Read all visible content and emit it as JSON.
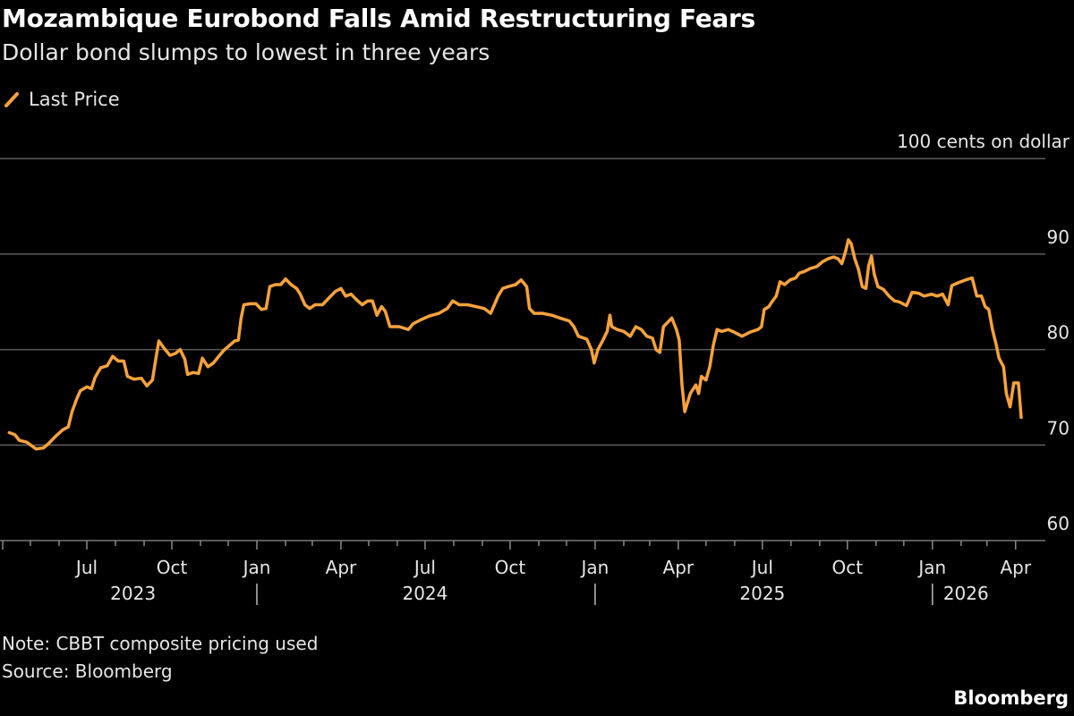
{
  "header": {
    "title": "Mozambique Eurobond Falls Amid Restructuring Fears",
    "subtitle": "Dollar bond slumps to lowest in three years"
  },
  "footer": {
    "note": "Note: CBBT composite pricing used",
    "source": "Source: Bloomberg",
    "brand": "Bloomberg"
  },
  "colors": {
    "line": "#f7a23b",
    "grid": "#5a5a5a",
    "background": "#000000"
  },
  "chart_data": {
    "type": "line",
    "title": "Mozambique Eurobond Falls Amid Restructuring Fears",
    "subtitle": "Dollar bond slumps to lowest in three years",
    "ylabel": "cents on dollar",
    "y_unit_label": "100 cents on dollar",
    "ylim": [
      60,
      100
    ],
    "yticks": [
      60,
      70,
      80,
      90,
      100
    ],
    "ytick_labels": [
      "60",
      "70",
      "80",
      "90",
      "100 cents on dollar"
    ],
    "xlim": [
      "2023-04-01",
      "2026-04-30"
    ],
    "xtick_labels": [
      {
        "date": "2023-07-01",
        "label": "Jul"
      },
      {
        "date": "2023-10-01",
        "label": "Oct"
      },
      {
        "date": "2024-01-01",
        "label": "Jan"
      },
      {
        "date": "2024-04-01",
        "label": "Apr"
      },
      {
        "date": "2024-07-01",
        "label": "Jul"
      },
      {
        "date": "2024-10-01",
        "label": "Oct"
      },
      {
        "date": "2025-01-01",
        "label": "Jan"
      },
      {
        "date": "2025-04-01",
        "label": "Apr"
      },
      {
        "date": "2025-07-01",
        "label": "Jul"
      },
      {
        "date": "2025-10-01",
        "label": "Oct"
      },
      {
        "date": "2026-01-01",
        "label": "Jan"
      },
      {
        "date": "2026-04-01",
        "label": "Apr"
      }
    ],
    "year_labels": [
      "2023",
      "2024",
      "2025",
      "2026"
    ],
    "grid": true,
    "legend_placement": "top-left",
    "series": [
      {
        "name": "Last Price",
        "color": "#f7a23b",
        "points": [
          [
            "2023-04-08",
            71.3
          ],
          [
            "2023-04-14",
            71.1
          ],
          [
            "2023-04-19",
            70.5
          ],
          [
            "2023-04-27",
            70.3
          ],
          [
            "2023-05-07",
            69.6
          ],
          [
            "2023-05-15",
            69.7
          ],
          [
            "2023-05-21",
            70.2
          ],
          [
            "2023-05-28",
            70.9
          ],
          [
            "2023-06-05",
            71.6
          ],
          [
            "2023-06-11",
            71.9
          ],
          [
            "2023-06-15",
            73.5
          ],
          [
            "2023-06-20",
            74.8
          ],
          [
            "2023-06-24",
            75.7
          ],
          [
            "2023-07-01",
            76.1
          ],
          [
            "2023-07-06",
            75.9
          ],
          [
            "2023-07-10",
            77.1
          ],
          [
            "2023-07-16",
            78.1
          ],
          [
            "2023-07-23",
            78.3
          ],
          [
            "2023-07-29",
            79.3
          ],
          [
            "2023-08-04",
            78.8
          ],
          [
            "2023-08-10",
            78.8
          ],
          [
            "2023-08-14",
            77.2
          ],
          [
            "2023-08-21",
            76.9
          ],
          [
            "2023-08-29",
            77.0
          ],
          [
            "2023-09-04",
            76.2
          ],
          [
            "2023-09-10",
            76.8
          ],
          [
            "2023-09-14",
            79.2
          ],
          [
            "2023-09-17",
            80.9
          ],
          [
            "2023-09-23",
            80.1
          ],
          [
            "2023-09-29",
            79.4
          ],
          [
            "2023-10-05",
            79.6
          ],
          [
            "2023-10-10",
            80.0
          ],
          [
            "2023-10-15",
            79.0
          ],
          [
            "2023-10-18",
            77.4
          ],
          [
            "2023-10-24",
            77.6
          ],
          [
            "2023-10-30",
            77.5
          ],
          [
            "2023-11-03",
            79.1
          ],
          [
            "2023-11-09",
            78.2
          ],
          [
            "2023-11-15",
            78.6
          ],
          [
            "2023-11-20",
            79.2
          ],
          [
            "2023-11-26",
            79.9
          ],
          [
            "2023-12-02",
            80.4
          ],
          [
            "2023-12-08",
            80.9
          ],
          [
            "2023-12-12",
            81.0
          ],
          [
            "2023-12-15",
            83.3
          ],
          [
            "2023-12-18",
            84.7
          ],
          [
            "2023-12-25",
            84.8
          ],
          [
            "2023-12-31",
            84.8
          ],
          [
            "2024-01-06",
            84.2
          ],
          [
            "2024-01-11",
            84.3
          ],
          [
            "2024-01-15",
            86.6
          ],
          [
            "2024-01-21",
            86.8
          ],
          [
            "2024-01-27",
            86.8
          ],
          [
            "2024-02-01",
            87.4
          ],
          [
            "2024-02-07",
            86.8
          ],
          [
            "2024-02-13",
            86.4
          ],
          [
            "2024-02-17",
            85.8
          ],
          [
            "2024-02-22",
            84.7
          ],
          [
            "2024-02-27",
            84.3
          ],
          [
            "2024-03-04",
            84.7
          ],
          [
            "2024-03-12",
            84.7
          ],
          [
            "2024-03-19",
            85.4
          ],
          [
            "2024-03-26",
            86.1
          ],
          [
            "2024-04-01",
            86.4
          ],
          [
            "2024-04-06",
            85.6
          ],
          [
            "2024-04-12",
            85.8
          ],
          [
            "2024-04-18",
            85.2
          ],
          [
            "2024-04-24",
            84.7
          ],
          [
            "2024-04-30",
            85.1
          ],
          [
            "2024-05-05",
            85.1
          ],
          [
            "2024-05-10",
            83.6
          ],
          [
            "2024-05-15",
            84.5
          ],
          [
            "2024-05-19",
            84.0
          ],
          [
            "2024-05-24",
            82.4
          ],
          [
            "2024-06-03",
            82.4
          ],
          [
            "2024-06-13",
            82.1
          ],
          [
            "2024-06-18",
            82.7
          ],
          [
            "2024-06-26",
            83.1
          ],
          [
            "2024-07-05",
            83.5
          ],
          [
            "2024-07-16",
            83.8
          ],
          [
            "2024-07-25",
            84.3
          ],
          [
            "2024-07-31",
            85.1
          ],
          [
            "2024-08-07",
            84.7
          ],
          [
            "2024-08-16",
            84.7
          ],
          [
            "2024-08-25",
            84.5
          ],
          [
            "2024-09-03",
            84.3
          ],
          [
            "2024-09-10",
            83.8
          ],
          [
            "2024-09-14",
            84.7
          ],
          [
            "2024-09-18",
            85.6
          ],
          [
            "2024-09-23",
            86.4
          ],
          [
            "2024-09-29",
            86.6
          ],
          [
            "2024-10-07",
            86.8
          ],
          [
            "2024-10-13",
            87.3
          ],
          [
            "2024-10-19",
            86.6
          ],
          [
            "2024-10-22",
            84.3
          ],
          [
            "2024-10-27",
            83.8
          ],
          [
            "2024-11-05",
            83.8
          ],
          [
            "2024-11-15",
            83.6
          ],
          [
            "2024-11-24",
            83.3
          ],
          [
            "2024-12-04",
            83.0
          ],
          [
            "2024-12-09",
            82.4
          ],
          [
            "2024-12-14",
            81.4
          ],
          [
            "2024-12-23",
            81.1
          ],
          [
            "2024-12-28",
            80.0
          ],
          [
            "2024-12-31",
            78.6
          ],
          [
            "2025-01-04",
            80.0
          ],
          [
            "2025-01-09",
            80.9
          ],
          [
            "2025-01-14",
            81.9
          ],
          [
            "2025-01-17",
            83.6
          ],
          [
            "2025-01-19",
            82.4
          ],
          [
            "2025-01-25",
            82.1
          ],
          [
            "2025-02-01",
            81.9
          ],
          [
            "2025-02-08",
            81.4
          ],
          [
            "2025-02-14",
            82.4
          ],
          [
            "2025-02-20",
            82.1
          ],
          [
            "2025-02-26",
            81.4
          ],
          [
            "2025-03-04",
            81.2
          ],
          [
            "2025-03-08",
            80.0
          ],
          [
            "2025-03-12",
            79.7
          ],
          [
            "2025-03-16",
            82.4
          ],
          [
            "2025-03-22",
            83.0
          ],
          [
            "2025-03-25",
            83.3
          ],
          [
            "2025-03-30",
            82.1
          ],
          [
            "2025-04-02",
            81.0
          ],
          [
            "2025-04-05",
            76.3
          ],
          [
            "2025-04-08",
            73.5
          ],
          [
            "2025-04-14",
            75.4
          ],
          [
            "2025-04-20",
            76.3
          ],
          [
            "2025-04-23",
            75.4
          ],
          [
            "2025-04-26",
            77.2
          ],
          [
            "2025-05-01",
            76.8
          ],
          [
            "2025-05-05",
            78.2
          ],
          [
            "2025-05-09",
            80.5
          ],
          [
            "2025-05-13",
            82.1
          ],
          [
            "2025-05-18",
            81.9
          ],
          [
            "2025-05-25",
            82.1
          ],
          [
            "2025-06-01",
            81.8
          ],
          [
            "2025-06-09",
            81.4
          ],
          [
            "2025-06-17",
            81.8
          ],
          [
            "2025-06-26",
            82.1
          ],
          [
            "2025-06-30",
            82.4
          ],
          [
            "2025-07-03",
            84.2
          ],
          [
            "2025-07-08",
            84.5
          ],
          [
            "2025-07-12",
            85.1
          ],
          [
            "2025-07-16",
            85.6
          ],
          [
            "2025-07-20",
            87.1
          ],
          [
            "2025-07-25",
            86.8
          ],
          [
            "2025-07-31",
            87.3
          ],
          [
            "2025-08-06",
            87.5
          ],
          [
            "2025-08-10",
            88.0
          ],
          [
            "2025-08-16",
            88.2
          ],
          [
            "2025-08-22",
            88.5
          ],
          [
            "2025-08-29",
            88.7
          ],
          [
            "2025-09-04",
            89.2
          ],
          [
            "2025-09-10",
            89.5
          ],
          [
            "2025-09-16",
            89.7
          ],
          [
            "2025-09-21",
            89.5
          ],
          [
            "2025-09-25",
            89.0
          ],
          [
            "2025-09-29",
            90.3
          ],
          [
            "2025-10-02",
            91.5
          ],
          [
            "2025-10-05",
            91.1
          ],
          [
            "2025-10-09",
            89.5
          ],
          [
            "2025-10-13",
            88.4
          ],
          [
            "2025-10-17",
            86.6
          ],
          [
            "2025-10-21",
            86.4
          ],
          [
            "2025-10-24",
            88.8
          ],
          [
            "2025-10-27",
            89.8
          ],
          [
            "2025-10-30",
            87.9
          ],
          [
            "2025-11-03",
            86.6
          ],
          [
            "2025-11-09",
            86.3
          ],
          [
            "2025-11-15",
            85.6
          ],
          [
            "2025-11-21",
            85.1
          ],
          [
            "2025-11-26",
            85.0
          ],
          [
            "2025-12-04",
            84.6
          ],
          [
            "2025-12-10",
            86.0
          ],
          [
            "2025-12-17",
            85.9
          ],
          [
            "2025-12-23",
            85.6
          ],
          [
            "2025-12-31",
            85.8
          ],
          [
            "2026-01-06",
            85.6
          ],
          [
            "2026-01-12",
            85.8
          ],
          [
            "2026-01-18",
            84.7
          ],
          [
            "2026-01-22",
            86.7
          ],
          [
            "2026-01-29",
            87.0
          ],
          [
            "2026-02-06",
            87.3
          ],
          [
            "2026-02-13",
            87.5
          ],
          [
            "2026-02-18",
            85.6
          ],
          [
            "2026-02-23",
            85.6
          ],
          [
            "2026-02-27",
            84.5
          ],
          [
            "2026-03-03",
            84.2
          ],
          [
            "2026-03-07",
            82.1
          ],
          [
            "2026-03-11",
            80.5
          ],
          [
            "2026-03-14",
            79.1
          ],
          [
            "2026-03-19",
            78.2
          ],
          [
            "2026-03-22",
            75.4
          ],
          [
            "2026-03-26",
            74.0
          ],
          [
            "2026-03-30",
            76.5
          ],
          [
            "2026-04-04",
            76.5
          ],
          [
            "2026-04-07",
            72.9
          ]
        ]
      }
    ]
  }
}
